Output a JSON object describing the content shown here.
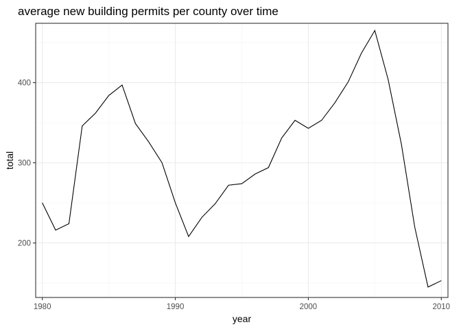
{
  "chart_data": {
    "type": "line",
    "title": "average new building permits per county over time",
    "xlabel": "year",
    "ylabel": "total",
    "xlim": [
      1979.5,
      2010.5
    ],
    "ylim": [
      132,
      474
    ],
    "x_ticks": [
      1980,
      1990,
      2000,
      2010
    ],
    "y_ticks": [
      200,
      300,
      400
    ],
    "grid": true,
    "series": [
      {
        "x": [
          1980,
          1981,
          1982,
          1983,
          1984,
          1985,
          1986,
          1987,
          1988,
          1989,
          1990,
          1991,
          1992,
          1993,
          1994,
          1995,
          1996,
          1997,
          1998,
          1999,
          2000,
          2001,
          2002,
          2003,
          2004,
          2005,
          2006,
          2007,
          2008,
          2009,
          2010
        ],
        "y": [
          250,
          216,
          224,
          346,
          362,
          384,
          397,
          349,
          326,
          300,
          250,
          208,
          232,
          249,
          272,
          274,
          286,
          294,
          331,
          353,
          343,
          353,
          375,
          401,
          437,
          465,
          404,
          323,
          220,
          145,
          153
        ]
      }
    ]
  }
}
